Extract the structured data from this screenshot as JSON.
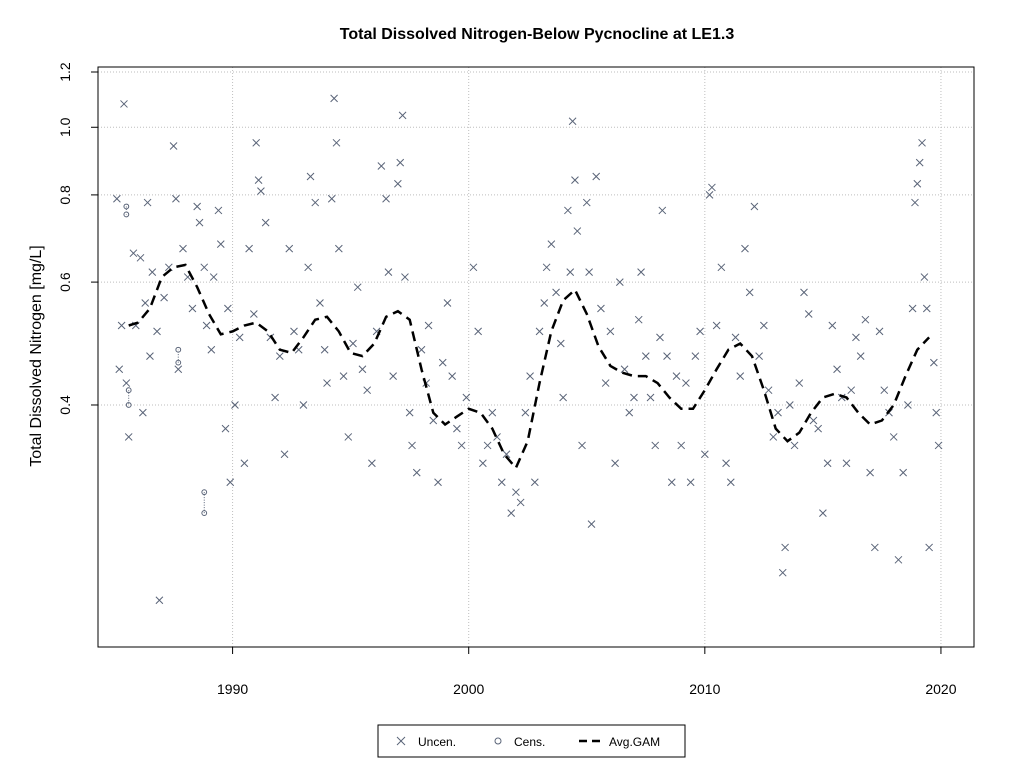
{
  "chart_data": {
    "type": "scatter",
    "title": "Total Dissolved Nitrogen-Below Pycnocline at LE1.3",
    "xlabel": "",
    "ylabel": "Total Dissolved Nitrogen [mg/L]",
    "xlim": [
      1984.3,
      2021.4
    ],
    "ylim": [
      0.18,
      1.22
    ],
    "y_scale": "log",
    "x_ticks": [
      1990,
      2000,
      2010,
      2020
    ],
    "y_ticks": [
      0.4,
      0.6,
      0.8,
      1.0,
      1.2
    ],
    "y_tick_labels": [
      "0.4",
      "0.6",
      "0.8",
      "1.0",
      "1.2"
    ],
    "grid": true,
    "legend": {
      "position": "bottom-center",
      "items": [
        {
          "label": "Uncen.",
          "symbol": "x"
        },
        {
          "label": "Cens.",
          "symbol": "o"
        },
        {
          "label": "Avg.GAM",
          "symbol": "dashed-line"
        }
      ]
    },
    "colors": {
      "points": "#5a6478",
      "gam": "#000000",
      "grid": "#bebebe"
    },
    "series": [
      {
        "name": "Uncen.",
        "symbol": "x",
        "points": [
          [
            1985.1,
            0.79
          ],
          [
            1985.2,
            0.45
          ],
          [
            1985.3,
            0.52
          ],
          [
            1985.4,
            1.08
          ],
          [
            1985.5,
            0.43
          ],
          [
            1985.6,
            0.36
          ],
          [
            1985.8,
            0.66
          ],
          [
            1985.9,
            0.52
          ],
          [
            1986.1,
            0.65
          ],
          [
            1986.2,
            0.39
          ],
          [
            1986.3,
            0.56
          ],
          [
            1986.4,
            0.78
          ],
          [
            1986.5,
            0.47
          ],
          [
            1986.6,
            0.62
          ],
          [
            1986.8,
            0.51
          ],
          [
            1986.9,
            0.21
          ],
          [
            1987.1,
            0.57
          ],
          [
            1987.3,
            0.63
          ],
          [
            1987.5,
            0.94
          ],
          [
            1987.6,
            0.79
          ],
          [
            1987.7,
            0.45
          ],
          [
            1987.9,
            0.67
          ],
          [
            1988.1,
            0.61
          ],
          [
            1988.3,
            0.55
          ],
          [
            1988.5,
            0.77
          ],
          [
            1988.6,
            0.73
          ],
          [
            1988.8,
            0.63
          ],
          [
            1988.9,
            0.52
          ],
          [
            1989.1,
            0.48
          ],
          [
            1989.2,
            0.61
          ],
          [
            1989.4,
            0.76
          ],
          [
            1989.5,
            0.68
          ],
          [
            1989.7,
            0.37
          ],
          [
            1989.8,
            0.55
          ],
          [
            1989.9,
            0.31
          ],
          [
            1990.1,
            0.4
          ],
          [
            1990.3,
            0.5
          ],
          [
            1990.5,
            0.33
          ],
          [
            1990.7,
            0.67
          ],
          [
            1990.9,
            0.54
          ],
          [
            1991.0,
            0.95
          ],
          [
            1991.1,
            0.84
          ],
          [
            1991.2,
            0.81
          ],
          [
            1991.4,
            0.73
          ],
          [
            1991.6,
            0.5
          ],
          [
            1991.8,
            0.41
          ],
          [
            1992.0,
            0.47
          ],
          [
            1992.2,
            0.34
          ],
          [
            1992.4,
            0.67
          ],
          [
            1992.6,
            0.51
          ],
          [
            1992.8,
            0.48
          ],
          [
            1993.0,
            0.4
          ],
          [
            1993.2,
            0.63
          ],
          [
            1993.3,
            0.85
          ],
          [
            1993.5,
            0.78
          ],
          [
            1993.7,
            0.56
          ],
          [
            1993.9,
            0.48
          ],
          [
            1994.0,
            0.43
          ],
          [
            1994.2,
            0.79
          ],
          [
            1994.3,
            1.1
          ],
          [
            1994.4,
            0.95
          ],
          [
            1994.5,
            0.67
          ],
          [
            1994.7,
            0.44
          ],
          [
            1994.9,
            0.36
          ],
          [
            1995.1,
            0.49
          ],
          [
            1995.3,
            0.59
          ],
          [
            1995.5,
            0.45
          ],
          [
            1995.7,
            0.42
          ],
          [
            1995.9,
            0.33
          ],
          [
            1996.1,
            0.51
          ],
          [
            1996.3,
            0.88
          ],
          [
            1996.5,
            0.79
          ],
          [
            1996.6,
            0.62
          ],
          [
            1996.8,
            0.44
          ],
          [
            1997.0,
            0.83
          ],
          [
            1997.1,
            0.89
          ],
          [
            1997.2,
            1.04
          ],
          [
            1997.3,
            0.61
          ],
          [
            1997.5,
            0.39
          ],
          [
            1997.6,
            0.35
          ],
          [
            1997.8,
            0.32
          ],
          [
            1998.0,
            0.48
          ],
          [
            1998.2,
            0.43
          ],
          [
            1998.3,
            0.52
          ],
          [
            1998.5,
            0.38
          ],
          [
            1998.7,
            0.31
          ],
          [
            1998.9,
            0.46
          ],
          [
            1999.1,
            0.56
          ],
          [
            1999.3,
            0.44
          ],
          [
            1999.5,
            0.37
          ],
          [
            1999.7,
            0.35
          ],
          [
            1999.9,
            0.41
          ],
          [
            2000.2,
            0.63
          ],
          [
            2000.4,
            0.51
          ],
          [
            2000.6,
            0.33
          ],
          [
            2000.8,
            0.35
          ],
          [
            2001.0,
            0.39
          ],
          [
            2001.2,
            0.36
          ],
          [
            2001.4,
            0.31
          ],
          [
            2001.6,
            0.34
          ],
          [
            2001.8,
            0.28
          ],
          [
            2002.0,
            0.3
          ],
          [
            2002.2,
            0.29
          ],
          [
            2002.4,
            0.39
          ],
          [
            2002.6,
            0.44
          ],
          [
            2002.8,
            0.31
          ],
          [
            2003.0,
            0.51
          ],
          [
            2003.2,
            0.56
          ],
          [
            2003.3,
            0.63
          ],
          [
            2003.5,
            0.68
          ],
          [
            2003.7,
            0.58
          ],
          [
            2003.9,
            0.49
          ],
          [
            2004.0,
            0.41
          ],
          [
            2004.2,
            0.76
          ],
          [
            2004.3,
            0.62
          ],
          [
            2004.4,
            1.02
          ],
          [
            2004.5,
            0.84
          ],
          [
            2004.6,
            0.71
          ],
          [
            2004.8,
            0.35
          ],
          [
            2005.0,
            0.78
          ],
          [
            2005.1,
            0.62
          ],
          [
            2005.2,
            0.27
          ],
          [
            2005.4,
            0.85
          ],
          [
            2005.6,
            0.55
          ],
          [
            2005.8,
            0.43
          ],
          [
            2006.0,
            0.51
          ],
          [
            2006.2,
            0.33
          ],
          [
            2006.4,
            0.6
          ],
          [
            2006.6,
            0.45
          ],
          [
            2006.8,
            0.39
          ],
          [
            2007.0,
            0.41
          ],
          [
            2007.2,
            0.53
          ],
          [
            2007.3,
            0.62
          ],
          [
            2007.5,
            0.47
          ],
          [
            2007.7,
            0.41
          ],
          [
            2007.9,
            0.35
          ],
          [
            2008.1,
            0.5
          ],
          [
            2008.2,
            0.76
          ],
          [
            2008.4,
            0.47
          ],
          [
            2008.6,
            0.31
          ],
          [
            2008.8,
            0.44
          ],
          [
            2009.0,
            0.35
          ],
          [
            2009.2,
            0.43
          ],
          [
            2009.4,
            0.31
          ],
          [
            2009.6,
            0.47
          ],
          [
            2009.8,
            0.51
          ],
          [
            2010.0,
            0.34
          ],
          [
            2010.2,
            0.8
          ],
          [
            2010.3,
            0.82
          ],
          [
            2010.5,
            0.52
          ],
          [
            2010.7,
            0.63
          ],
          [
            2010.9,
            0.33
          ],
          [
            2011.1,
            0.31
          ],
          [
            2011.3,
            0.5
          ],
          [
            2011.5,
            0.44
          ],
          [
            2011.7,
            0.67
          ],
          [
            2011.9,
            0.58
          ],
          [
            2012.1,
            0.77
          ],
          [
            2012.3,
            0.47
          ],
          [
            2012.5,
            0.52
          ],
          [
            2012.7,
            0.42
          ],
          [
            2012.9,
            0.36
          ],
          [
            2013.1,
            0.39
          ],
          [
            2013.3,
            0.23
          ],
          [
            2013.4,
            0.25
          ],
          [
            2013.6,
            0.4
          ],
          [
            2013.8,
            0.35
          ],
          [
            2014.0,
            0.43
          ],
          [
            2014.2,
            0.58
          ],
          [
            2014.4,
            0.54
          ],
          [
            2014.6,
            0.38
          ],
          [
            2014.8,
            0.37
          ],
          [
            2015.0,
            0.28
          ],
          [
            2015.2,
            0.33
          ],
          [
            2015.4,
            0.52
          ],
          [
            2015.6,
            0.45
          ],
          [
            2015.8,
            0.41
          ],
          [
            2016.0,
            0.33
          ],
          [
            2016.2,
            0.42
          ],
          [
            2016.4,
            0.5
          ],
          [
            2016.6,
            0.47
          ],
          [
            2016.8,
            0.53
          ],
          [
            2017.0,
            0.32
          ],
          [
            2017.2,
            0.25
          ],
          [
            2017.4,
            0.51
          ],
          [
            2017.6,
            0.42
          ],
          [
            2017.8,
            0.39
          ],
          [
            2018.0,
            0.36
          ],
          [
            2018.2,
            0.24
          ],
          [
            2018.4,
            0.32
          ],
          [
            2018.6,
            0.4
          ],
          [
            2018.8,
            0.55
          ],
          [
            2018.9,
            0.78
          ],
          [
            2019.0,
            0.83
          ],
          [
            2019.1,
            0.89
          ],
          [
            2019.2,
            0.95
          ],
          [
            2019.3,
            0.61
          ],
          [
            2019.4,
            0.55
          ],
          [
            2019.5,
            0.25
          ],
          [
            2019.7,
            0.46
          ],
          [
            2019.8,
            0.39
          ],
          [
            2019.9,
            0.35
          ]
        ]
      },
      {
        "name": "Cens.",
        "symbol": "o",
        "points": [
          [
            1985.5,
            0.77
          ],
          [
            1985.5,
            0.75
          ],
          [
            1985.6,
            0.42
          ],
          [
            1985.6,
            0.4
          ],
          [
            1987.7,
            0.46
          ],
          [
            1987.7,
            0.48
          ],
          [
            1988.8,
            0.3
          ],
          [
            1988.8,
            0.28
          ]
        ]
      },
      {
        "name": "Avg.GAM",
        "symbol": "dashed-line",
        "points": [
          [
            1985.6,
            0.52
          ],
          [
            1986.0,
            0.525
          ],
          [
            1986.5,
            0.55
          ],
          [
            1987.0,
            0.61
          ],
          [
            1987.5,
            0.63
          ],
          [
            1988.0,
            0.635
          ],
          [
            1988.5,
            0.59
          ],
          [
            1989.0,
            0.54
          ],
          [
            1989.5,
            0.505
          ],
          [
            1990.0,
            0.51
          ],
          [
            1990.5,
            0.52
          ],
          [
            1991.0,
            0.525
          ],
          [
            1991.5,
            0.51
          ],
          [
            1992.0,
            0.48
          ],
          [
            1992.5,
            0.475
          ],
          [
            1993.0,
            0.5
          ],
          [
            1993.5,
            0.53
          ],
          [
            1994.0,
            0.535
          ],
          [
            1994.5,
            0.51
          ],
          [
            1995.0,
            0.475
          ],
          [
            1995.5,
            0.47
          ],
          [
            1996.0,
            0.49
          ],
          [
            1996.5,
            0.535
          ],
          [
            1997.0,
            0.545
          ],
          [
            1997.5,
            0.53
          ],
          [
            1998.0,
            0.45
          ],
          [
            1998.5,
            0.39
          ],
          [
            1999.0,
            0.375
          ],
          [
            1999.5,
            0.385
          ],
          [
            2000.0,
            0.395
          ],
          [
            2000.5,
            0.39
          ],
          [
            2001.0,
            0.37
          ],
          [
            2001.5,
            0.34
          ],
          [
            2002.0,
            0.325
          ],
          [
            2002.5,
            0.355
          ],
          [
            2003.0,
            0.43
          ],
          [
            2003.5,
            0.51
          ],
          [
            2004.0,
            0.565
          ],
          [
            2004.5,
            0.585
          ],
          [
            2005.0,
            0.54
          ],
          [
            2005.5,
            0.485
          ],
          [
            2006.0,
            0.455
          ],
          [
            2006.5,
            0.445
          ],
          [
            2007.0,
            0.44
          ],
          [
            2007.5,
            0.44
          ],
          [
            2008.0,
            0.43
          ],
          [
            2008.5,
            0.41
          ],
          [
            2009.0,
            0.395
          ],
          [
            2009.5,
            0.395
          ],
          [
            2010.0,
            0.42
          ],
          [
            2010.5,
            0.45
          ],
          [
            2011.0,
            0.48
          ],
          [
            2011.5,
            0.49
          ],
          [
            2012.0,
            0.47
          ],
          [
            2012.5,
            0.42
          ],
          [
            2013.0,
            0.37
          ],
          [
            2013.5,
            0.355
          ],
          [
            2014.0,
            0.365
          ],
          [
            2014.5,
            0.39
          ],
          [
            2015.0,
            0.41
          ],
          [
            2015.5,
            0.415
          ],
          [
            2016.0,
            0.41
          ],
          [
            2016.5,
            0.39
          ],
          [
            2017.0,
            0.375
          ],
          [
            2017.5,
            0.38
          ],
          [
            2018.0,
            0.4
          ],
          [
            2018.5,
            0.44
          ],
          [
            2019.0,
            0.48
          ],
          [
            2019.5,
            0.5
          ]
        ]
      }
    ]
  }
}
